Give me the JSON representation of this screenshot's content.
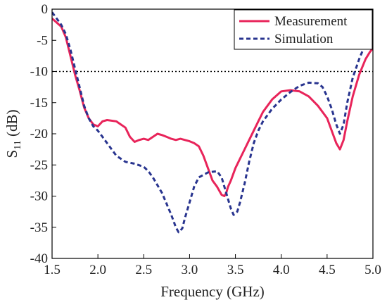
{
  "chart_data": {
    "type": "line",
    "xlabel": "Frequency (GHz)",
    "ylabel": {
      "base": "S",
      "sub": "11",
      "rest": " (dB)"
    },
    "xlim": [
      1.5,
      5.0
    ],
    "ylim": [
      -40,
      0
    ],
    "xticks": [
      "1.5",
      "2.0",
      "2.5",
      "3.0",
      "3.5",
      "4.0",
      "4.5",
      "5.0"
    ],
    "yticks": [
      "0",
      "-5",
      "-10",
      "-15",
      "-20",
      "-25",
      "-30",
      "-35",
      "-40"
    ],
    "reference_line": {
      "y": -10,
      "style": "dotted",
      "color": "#000000"
    },
    "legend_position": "top-right",
    "grid": false,
    "series": [
      {
        "name": "Measurement",
        "color": "#e8245a",
        "dash": "solid",
        "points": [
          [
            1.5,
            -1.5
          ],
          [
            1.6,
            -2.8
          ],
          [
            1.65,
            -4.5
          ],
          [
            1.7,
            -7.5
          ],
          [
            1.75,
            -10.5
          ],
          [
            1.8,
            -13.0
          ],
          [
            1.85,
            -15.8
          ],
          [
            1.9,
            -17.5
          ],
          [
            1.95,
            -18.5
          ],
          [
            2.0,
            -18.8
          ],
          [
            2.05,
            -18.0
          ],
          [
            2.1,
            -17.8
          ],
          [
            2.2,
            -18.0
          ],
          [
            2.25,
            -18.5
          ],
          [
            2.3,
            -19.0
          ],
          [
            2.35,
            -20.5
          ],
          [
            2.4,
            -21.3
          ],
          [
            2.45,
            -21.0
          ],
          [
            2.5,
            -20.8
          ],
          [
            2.55,
            -21.0
          ],
          [
            2.6,
            -20.5
          ],
          [
            2.65,
            -20.0
          ],
          [
            2.7,
            -20.2
          ],
          [
            2.75,
            -20.5
          ],
          [
            2.8,
            -20.8
          ],
          [
            2.85,
            -21.0
          ],
          [
            2.9,
            -20.8
          ],
          [
            2.95,
            -21.0
          ],
          [
            3.0,
            -21.2
          ],
          [
            3.05,
            -21.5
          ],
          [
            3.1,
            -22.0
          ],
          [
            3.15,
            -23.5
          ],
          [
            3.2,
            -25.5
          ],
          [
            3.25,
            -27.5
          ],
          [
            3.3,
            -28.5
          ],
          [
            3.35,
            -29.8
          ],
          [
            3.38,
            -30.0
          ],
          [
            3.4,
            -29.5
          ],
          [
            3.42,
            -28.5
          ],
          [
            3.45,
            -27.5
          ],
          [
            3.5,
            -25.5
          ],
          [
            3.55,
            -24.0
          ],
          [
            3.6,
            -22.5
          ],
          [
            3.65,
            -21.0
          ],
          [
            3.7,
            -19.5
          ],
          [
            3.75,
            -18.0
          ],
          [
            3.8,
            -16.5
          ],
          [
            3.9,
            -14.5
          ],
          [
            4.0,
            -13.2
          ],
          [
            4.1,
            -13.0
          ],
          [
            4.2,
            -13.2
          ],
          [
            4.3,
            -14.0
          ],
          [
            4.4,
            -15.5
          ],
          [
            4.5,
            -17.5
          ],
          [
            4.55,
            -19.5
          ],
          [
            4.6,
            -21.5
          ],
          [
            4.64,
            -22.5
          ],
          [
            4.68,
            -21.0
          ],
          [
            4.72,
            -18.0
          ],
          [
            4.78,
            -14.0
          ],
          [
            4.85,
            -10.5
          ],
          [
            4.92,
            -8.0
          ],
          [
            4.97,
            -6.8
          ],
          [
            5.0,
            -6.3
          ]
        ]
      },
      {
        "name": "Simulation",
        "color": "#28348f",
        "dash": "dashed",
        "points": [
          [
            1.5,
            -0.5
          ],
          [
            1.6,
            -2.5
          ],
          [
            1.65,
            -4.0
          ],
          [
            1.7,
            -6.5
          ],
          [
            1.75,
            -9.5
          ],
          [
            1.8,
            -12.5
          ],
          [
            1.85,
            -15.5
          ],
          [
            1.9,
            -17.5
          ],
          [
            1.95,
            -18.8
          ],
          [
            2.0,
            -19.5
          ],
          [
            2.05,
            -20.5
          ],
          [
            2.1,
            -21.5
          ],
          [
            2.15,
            -22.5
          ],
          [
            2.2,
            -23.5
          ],
          [
            2.3,
            -24.5
          ],
          [
            2.4,
            -24.8
          ],
          [
            2.5,
            -25.3
          ],
          [
            2.55,
            -26.0
          ],
          [
            2.6,
            -27.0
          ],
          [
            2.7,
            -29.5
          ],
          [
            2.8,
            -33.0
          ],
          [
            2.85,
            -35.0
          ],
          [
            2.88,
            -35.8
          ],
          [
            2.92,
            -35.2
          ],
          [
            2.95,
            -33.5
          ],
          [
            3.0,
            -31.0
          ],
          [
            3.05,
            -28.5
          ],
          [
            3.1,
            -27.0
          ],
          [
            3.2,
            -26.2
          ],
          [
            3.3,
            -26.0
          ],
          [
            3.35,
            -27.0
          ],
          [
            3.4,
            -29.5
          ],
          [
            3.45,
            -32.0
          ],
          [
            3.48,
            -33.0
          ],
          [
            3.52,
            -32.5
          ],
          [
            3.55,
            -31.0
          ],
          [
            3.6,
            -28.0
          ],
          [
            3.65,
            -24.5
          ],
          [
            3.7,
            -21.5
          ],
          [
            3.75,
            -19.5
          ],
          [
            3.8,
            -18.0
          ],
          [
            3.9,
            -16.0
          ],
          [
            4.0,
            -14.5
          ],
          [
            4.1,
            -13.3
          ],
          [
            4.2,
            -12.3
          ],
          [
            4.3,
            -11.8
          ],
          [
            4.4,
            -11.9
          ],
          [
            4.45,
            -12.5
          ],
          [
            4.5,
            -14.0
          ],
          [
            4.55,
            -16.0
          ],
          [
            4.6,
            -18.5
          ],
          [
            4.64,
            -20.0
          ],
          [
            4.68,
            -18.5
          ],
          [
            4.72,
            -15.0
          ],
          [
            4.78,
            -11.0
          ],
          [
            4.85,
            -8.0
          ],
          [
            4.92,
            -5.5
          ],
          [
            4.97,
            -4.5
          ],
          [
            5.0,
            -4.0
          ]
        ]
      }
    ]
  }
}
